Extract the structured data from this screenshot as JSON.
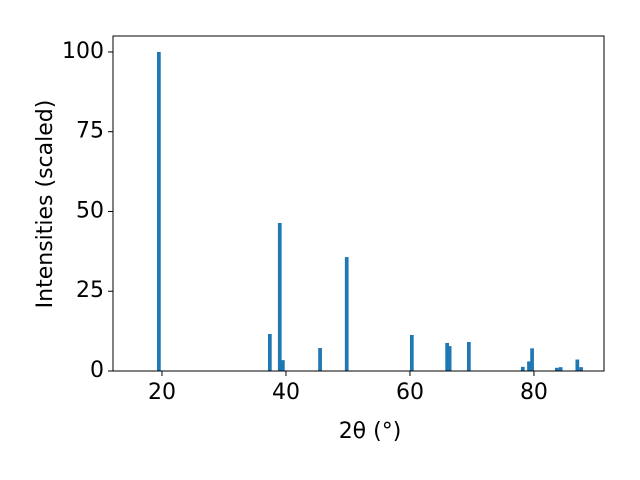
{
  "chart_data": {
    "type": "bar",
    "xlabel": "2θ (°)",
    "ylabel": "Intensities (scaled)",
    "color": "#1f77b4",
    "bar_width": 0.6,
    "x": [
      19.5,
      37.4,
      39.0,
      39.5,
      45.5,
      49.8,
      60.3,
      66.0,
      66.4,
      69.5,
      78.2,
      79.2,
      79.7,
      83.7,
      84.3,
      87.0,
      87.6
    ],
    "values": [
      100,
      11.6,
      46.4,
      3.4,
      7.2,
      35.7,
      11.3,
      8.8,
      7.8,
      9.1,
      1.3,
      3,
      7.1,
      1,
      1.2,
      3.6,
      1.2
    ],
    "xlim": [
      12.1,
      91.3
    ],
    "xticks": [
      20,
      40,
      60,
      80
    ],
    "ylim": [
      0,
      105
    ],
    "yticks": [
      0,
      25,
      50,
      75,
      100
    ]
  }
}
